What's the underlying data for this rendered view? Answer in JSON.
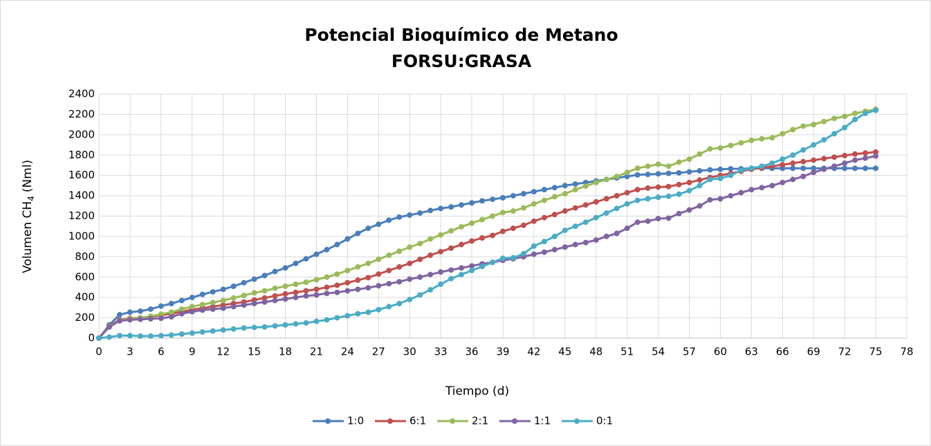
{
  "chart_data": {
    "type": "line",
    "title": [
      "Potencial Bioquímico de Metano",
      "FORSU:GRASA"
    ],
    "x_label": "Tiempo (d)",
    "y_label": {
      "main": "Volumen CH",
      "subscript": "4",
      "unit": "(Nml)"
    },
    "x": [
      0,
      1,
      2,
      3,
      4,
      5,
      6,
      7,
      8,
      9,
      10,
      11,
      12,
      13,
      14,
      15,
      16,
      17,
      18,
      19,
      20,
      21,
      22,
      23,
      24,
      25,
      26,
      27,
      28,
      29,
      30,
      31,
      32,
      33,
      34,
      35,
      36,
      37,
      38,
      39,
      40,
      41,
      42,
      43,
      44,
      45,
      46,
      47,
      48,
      49,
      50,
      51,
      52,
      53,
      54,
      55,
      56,
      57,
      58,
      59,
      60,
      61,
      62,
      63,
      64,
      65,
      66,
      67,
      68,
      69,
      70,
      71,
      72,
      73,
      74,
      75
    ],
    "series": [
      {
        "name": "1:0",
        "color": "#4a7ebb",
        "values": [
          0,
          130,
          230,
          255,
          265,
          285,
          315,
          340,
          370,
          400,
          430,
          455,
          480,
          510,
          545,
          580,
          615,
          655,
          690,
          735,
          780,
          825,
          870,
          920,
          975,
          1030,
          1080,
          1120,
          1160,
          1190,
          1210,
          1230,
          1255,
          1275,
          1290,
          1310,
          1330,
          1350,
          1365,
          1380,
          1400,
          1420,
          1440,
          1460,
          1480,
          1500,
          1515,
          1530,
          1545,
          1560,
          1575,
          1590,
          1605,
          1610,
          1615,
          1620,
          1625,
          1635,
          1645,
          1655,
          1660,
          1665,
          1665,
          1670,
          1670,
          1670,
          1670,
          1670,
          1670,
          1670,
          1670,
          1670,
          1670,
          1670,
          1670,
          1670
        ]
      },
      {
        "name": "6:1",
        "color": "#c0504d",
        "values": [
          0,
          120,
          180,
          195,
          200,
          210,
          225,
          240,
          260,
          280,
          295,
          310,
          325,
          340,
          355,
          375,
          395,
          415,
          435,
          450,
          465,
          480,
          500,
          520,
          545,
          570,
          595,
          630,
          665,
          700,
          735,
          775,
          815,
          850,
          885,
          920,
          955,
          985,
          1010,
          1050,
          1080,
          1110,
          1150,
          1185,
          1215,
          1250,
          1280,
          1310,
          1340,
          1370,
          1400,
          1430,
          1460,
          1475,
          1485,
          1490,
          1510,
          1530,
          1555,
          1580,
          1600,
          1620,
          1640,
          1660,
          1675,
          1690,
          1705,
          1720,
          1735,
          1750,
          1765,
          1780,
          1795,
          1810,
          1820,
          1830
        ]
      },
      {
        "name": "2:1",
        "color": "#9bbb59",
        "values": [
          0,
          115,
          175,
          190,
          200,
          215,
          235,
          255,
          285,
          310,
          330,
          350,
          370,
          395,
          420,
          445,
          465,
          490,
          510,
          530,
          550,
          575,
          600,
          630,
          665,
          700,
          735,
          775,
          815,
          855,
          895,
          930,
          975,
          1015,
          1055,
          1095,
          1130,
          1165,
          1200,
          1235,
          1250,
          1280,
          1320,
          1355,
          1390,
          1420,
          1460,
          1495,
          1530,
          1560,
          1590,
          1630,
          1670,
          1690,
          1710,
          1690,
          1730,
          1760,
          1810,
          1860,
          1870,
          1895,
          1920,
          1945,
          1960,
          1970,
          2010,
          2050,
          2085,
          2100,
          2130,
          2160,
          2180,
          2210,
          2230,
          2250
        ]
      },
      {
        "name": "1:1",
        "color": "#8064a2",
        "values": [
          0,
          110,
          170,
          180,
          185,
          190,
          195,
          210,
          240,
          260,
          275,
          285,
          295,
          310,
          325,
          340,
          355,
          370,
          385,
          400,
          415,
          425,
          440,
          450,
          465,
          480,
          495,
          515,
          535,
          555,
          580,
          600,
          625,
          650,
          670,
          690,
          710,
          730,
          745,
          765,
          780,
          800,
          825,
          845,
          870,
          895,
          920,
          940,
          965,
          1000,
          1030,
          1080,
          1140,
          1150,
          1175,
          1180,
          1225,
          1260,
          1300,
          1360,
          1370,
          1400,
          1430,
          1460,
          1480,
          1500,
          1530,
          1560,
          1590,
          1630,
          1660,
          1690,
          1720,
          1750,
          1770,
          1790
        ]
      },
      {
        "name": "0:1",
        "color": "#4bacc6",
        "values": [
          0,
          10,
          25,
          25,
          20,
          20,
          25,
          30,
          40,
          50,
          60,
          70,
          80,
          90,
          100,
          105,
          110,
          120,
          130,
          140,
          150,
          165,
          180,
          200,
          220,
          240,
          255,
          280,
          310,
          340,
          380,
          425,
          475,
          530,
          585,
          625,
          665,
          705,
          745,
          785,
          790,
          830,
          905,
          950,
          1000,
          1060,
          1100,
          1140,
          1185,
          1230,
          1275,
          1320,
          1355,
          1370,
          1385,
          1395,
          1415,
          1450,
          1500,
          1560,
          1570,
          1600,
          1650,
          1670,
          1690,
          1720,
          1760,
          1800,
          1850,
          1900,
          1950,
          2010,
          2070,
          2150,
          2210,
          2240
        ]
      }
    ],
    "xlim": [
      0,
      78
    ],
    "xticks": [
      0,
      3,
      6,
      9,
      12,
      15,
      18,
      21,
      24,
      27,
      30,
      33,
      36,
      39,
      42,
      45,
      48,
      51,
      54,
      57,
      60,
      63,
      66,
      69,
      72,
      75,
      78
    ],
    "ylim": [
      0,
      2400
    ],
    "yticks": [
      0,
      200,
      400,
      600,
      800,
      1000,
      1200,
      1400,
      1600,
      1800,
      2000,
      2200,
      2400
    ],
    "grid": true,
    "legend": "bottom"
  }
}
